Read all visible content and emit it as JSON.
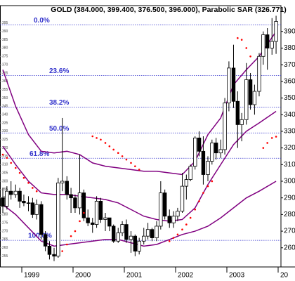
{
  "chart_data": {
    "type": "candlestick",
    "title": "GOLD (384.000, 399.400, 376.500, 396.000), Parabolic SAR (326.771)",
    "x": [
      1998.63,
      1998.71,
      1998.79,
      1998.88,
      1998.96,
      1999.04,
      1999.13,
      1999.21,
      1999.29,
      1999.38,
      1999.46,
      1999.54,
      1999.63,
      1999.71,
      1999.79,
      1999.88,
      1999.96,
      2000.04,
      2000.13,
      2000.21,
      2000.29,
      2000.38,
      2000.46,
      2000.54,
      2000.63,
      2000.71,
      2000.79,
      2000.88,
      2000.96,
      2001.04,
      2001.13,
      2001.21,
      2001.29,
      2001.38,
      2001.46,
      2001.54,
      2001.63,
      2001.71,
      2001.79,
      2001.88,
      2001.96,
      2002.04,
      2002.13,
      2002.21,
      2002.29,
      2002.38,
      2002.46,
      2002.54,
      2002.63,
      2002.71,
      2002.79,
      2002.88,
      2002.96,
      2003.04,
      2003.13,
      2003.21,
      2003.29,
      2003.38,
      2003.46,
      2003.54,
      2003.63,
      2003.71,
      2003.79,
      2003.88,
      2003.96
    ],
    "open": [
      290,
      285,
      294,
      292,
      294,
      288,
      287,
      287,
      280,
      286,
      268,
      261,
      256,
      255,
      299,
      300,
      292,
      290,
      284,
      293,
      278,
      275,
      274,
      288,
      277,
      278,
      273,
      264,
      269,
      274,
      265,
      267,
      258,
      264,
      267,
      271,
      266,
      273,
      293,
      279,
      275,
      279,
      282,
      297,
      301,
      309,
      326,
      318,
      304,
      312,
      323,
      317,
      319,
      347,
      368,
      348,
      334,
      337,
      361,
      346,
      354,
      375,
      388,
      380,
      384
    ],
    "high": [
      296,
      297,
      300,
      298,
      296,
      292,
      291,
      290,
      289,
      288,
      270,
      264,
      260,
      302,
      338,
      303,
      296,
      292,
      316,
      295,
      283,
      278,
      291,
      290,
      281,
      278,
      274,
      272,
      276,
      277,
      270,
      268,
      266,
      272,
      275,
      272,
      276,
      300,
      295,
      283,
      282,
      284,
      305,
      304,
      310,
      327,
      330,
      327,
      315,
      325,
      326,
      325,
      350,
      372,
      382,
      354,
      341,
      371,
      365,
      358,
      377,
      390,
      392,
      398,
      399.4
    ],
    "low": [
      281,
      283,
      289,
      290,
      284,
      285,
      282,
      278,
      277,
      265,
      258,
      253,
      252,
      254,
      294,
      289,
      281,
      281,
      280,
      276,
      273,
      269,
      272,
      275,
      270,
      270,
      263,
      263,
      267,
      263,
      257,
      255,
      256,
      262,
      265,
      264,
      264,
      271,
      277,
      272,
      272,
      276,
      281,
      289,
      300,
      307,
      315,
      298,
      300,
      310,
      313,
      314,
      316,
      342,
      344,
      320,
      324,
      334,
      343,
      340,
      351,
      370,
      367,
      376,
      376.5
    ],
    "close": [
      285,
      294,
      292,
      294,
      288,
      287,
      287,
      280,
      286,
      268,
      261,
      256,
      255,
      299,
      300,
      292,
      290,
      284,
      293,
      278,
      275,
      274,
      288,
      277,
      278,
      273,
      264,
      269,
      274,
      265,
      267,
      258,
      264,
      267,
      271,
      266,
      273,
      293,
      279,
      275,
      279,
      282,
      297,
      301,
      309,
      326,
      318,
      304,
      312,
      323,
      317,
      319,
      347,
      368,
      348,
      334,
      337,
      361,
      346,
      354,
      375,
      388,
      380,
      384,
      396
    ],
    "up_color": "#ffffff",
    "down_color": "#000000",
    "xlim": [
      1998.575,
      2004.055
    ],
    "xticks": [
      1999,
      2000,
      2001,
      2002,
      2003,
      {
        "value": 2004,
        "label": "20"
      }
    ],
    "ylim": [
      248.5,
      405.5
    ],
    "yticks": [
      260,
      270,
      280,
      290,
      300,
      310,
      320,
      330,
      340,
      350,
      360,
      370,
      380,
      390
    ],
    "yticks_left": [
      255,
      260,
      265,
      270,
      275,
      280,
      285,
      290,
      295,
      300,
      305,
      310,
      315,
      320,
      325,
      330,
      335,
      340,
      345,
      350,
      355,
      360,
      365,
      370,
      375,
      380,
      385,
      390,
      395
    ],
    "bands": [
      {
        "color": "#800080",
        "x": [
          1998.63,
          1998.88,
          1999.13,
          1999.38,
          1999.63,
          1999.88,
          2000.13,
          2000.38,
          2000.63,
          2000.88,
          2001.13,
          2001.38,
          2001.63,
          2001.88,
          2002.13,
          2002.38,
          2002.63,
          2002.88,
          2003.13,
          2003.38,
          2003.63,
          2003.96
        ],
        "values": [
          367,
          345,
          328,
          318,
          317,
          318,
          316,
          311,
          309,
          308,
          307,
          306,
          306,
          305,
          304,
          312,
          328,
          338,
          358,
          367,
          375,
          390
        ]
      },
      {
        "color": "#800080",
        "x": [
          1998.63,
          1998.88,
          1999.13,
          1999.38,
          1999.63,
          1999.88,
          2000.13,
          2000.38,
          2000.63,
          2000.88,
          2001.13,
          2001.38,
          2001.63,
          2001.88,
          2002.13,
          2002.38,
          2002.63,
          2002.88,
          2003.13,
          2003.38,
          2003.63,
          2003.96
        ],
        "values": [
          321,
          310,
          300,
          293,
          292,
          292,
          291,
          290,
          289,
          287,
          283,
          279,
          277,
          276,
          277,
          284,
          298,
          310,
          322,
          330,
          335,
          342
        ]
      },
      {
        "color": "#800080",
        "x": [
          1998.63,
          1998.88,
          1999.13,
          1999.38,
          1999.63,
          1999.88,
          2000.13,
          2000.38,
          2000.63,
          2000.88,
          2001.13,
          2001.38,
          2001.63,
          2001.88,
          2002.13,
          2002.38,
          2002.63,
          2002.88,
          2003.13,
          2003.38,
          2003.63,
          2003.96
        ],
        "values": [
          286,
          280,
          272,
          264,
          261,
          262,
          263,
          264,
          265,
          265,
          263,
          261,
          262,
          265,
          268,
          270,
          273,
          278,
          284,
          290,
          294,
          300
        ]
      }
    ],
    "sar": {
      "color": "#ff0000",
      "x": [
        1998.63,
        1998.71,
        1998.79,
        1998.88,
        1998.96,
        1999.04,
        1999.13,
        1999.21,
        1999.29,
        1999.79,
        1999.88,
        1999.96,
        2000.04,
        2000.13,
        2000.21,
        2000.38,
        2000.46,
        2000.54,
        2000.63,
        2000.71,
        2000.79,
        2000.88,
        2000.96,
        2001.04,
        2001.13,
        2001.21,
        2001.29,
        2001.88,
        2001.96,
        2002.04,
        2002.13,
        2002.21,
        2002.29,
        2002.38,
        2002.46,
        2002.54,
        2002.63,
        2002.71,
        2003.21,
        2003.29,
        2003.38,
        2003.46,
        2003.71,
        2003.79,
        2003.88,
        2003.96
      ],
      "values": [
        316,
        314,
        311,
        308,
        305,
        302,
        299,
        296,
        294,
        258,
        262,
        267,
        270,
        276,
        281,
        327,
        326,
        325,
        323,
        321,
        319,
        317,
        315,
        313,
        311,
        309,
        307,
        264,
        266,
        268,
        271,
        274,
        278,
        283,
        288,
        293,
        297,
        300,
        386,
        385,
        380,
        375,
        320,
        323,
        326,
        326.771
      ]
    },
    "fib_color": "#3333cc",
    "fib_levels": [
      {
        "value": 394,
        "label": "0.0%"
      },
      {
        "value": 363.5,
        "label": "23.6%"
      },
      {
        "value": 344.5,
        "label": "38.2%"
      },
      {
        "value": 329,
        "label": "50.0%"
      },
      {
        "value": 313.8,
        "label": "61.8%"
      },
      {
        "value": 264.5,
        "label": "100.0%"
      }
    ]
  }
}
